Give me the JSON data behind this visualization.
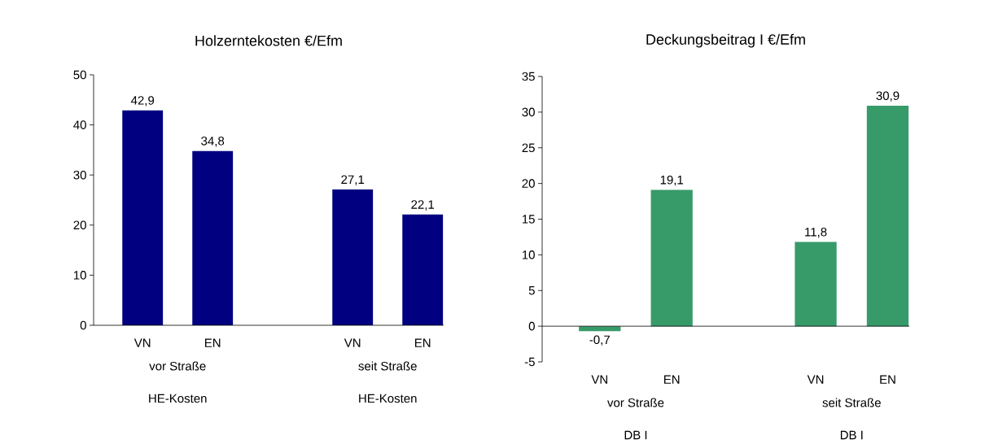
{
  "chart_data": [
    {
      "type": "bar",
      "title": "Holzerntekosten €/Efm",
      "categories": [
        "VN",
        "EN",
        null,
        "VN",
        "EN"
      ],
      "values": [
        42.9,
        34.8,
        null,
        27.1,
        22.1
      ],
      "value_labels": [
        "42,9",
        "34,8",
        null,
        "27,1",
        "22,1"
      ],
      "color": "#000080",
      "ylim": [
        0,
        50
      ],
      "yticks": [
        0,
        10,
        20,
        30,
        40,
        50
      ],
      "annotations": [
        "vor Straße",
        "seit Straße",
        "HE-Kosten",
        "HE-Kosten"
      ]
    },
    {
      "type": "bar",
      "title": "Deckungsbeitrag I €/Efm",
      "categories": [
        "VN",
        "EN",
        null,
        "VN",
        "EN"
      ],
      "values": [
        -0.7,
        19.1,
        null,
        11.8,
        30.9
      ],
      "value_labels": [
        "-0,7",
        "19,1",
        null,
        "11,8",
        "30,9"
      ],
      "color": "#379B69",
      "ylim": [
        -5,
        35
      ],
      "yticks": [
        -5,
        0,
        5,
        10,
        15,
        20,
        25,
        30,
        35
      ],
      "annotations": [
        "vor Straße",
        "seit Straße",
        "DB I",
        "DB I"
      ]
    }
  ]
}
